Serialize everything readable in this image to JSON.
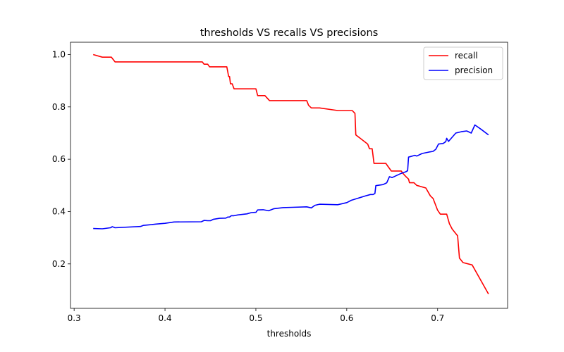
{
  "chart_data": {
    "type": "line",
    "title": "thresholds VS recalls VS precisions",
    "xlabel": "thresholds",
    "ylabel": "",
    "xlim": [
      0.296,
      0.777
    ],
    "ylim": [
      0.03,
      1.047
    ],
    "xticks": [
      0.3,
      0.4,
      0.5,
      0.6,
      0.7
    ],
    "xtick_labels": [
      "0.3",
      "0.4",
      "0.5",
      "0.6",
      "0.7"
    ],
    "yticks": [
      0.2,
      0.4,
      0.6,
      0.8,
      1.0
    ],
    "ytick_labels": [
      "0.2",
      "0.4",
      "0.6",
      "0.8",
      "1.0"
    ],
    "grid": false,
    "legend_position": "top-right",
    "series": [
      {
        "name": "recall",
        "color": "#ff0000",
        "points": [
          [
            0.321,
            1.0
          ],
          [
            0.331,
            0.99
          ],
          [
            0.341,
            0.99
          ],
          [
            0.345,
            0.972
          ],
          [
            0.441,
            0.972
          ],
          [
            0.443,
            0.963
          ],
          [
            0.447,
            0.963
          ],
          [
            0.449,
            0.953
          ],
          [
            0.468,
            0.953
          ],
          [
            0.469,
            0.935
          ],
          [
            0.47,
            0.916
          ],
          [
            0.471,
            0.916
          ],
          [
            0.472,
            0.888
          ],
          [
            0.474,
            0.888
          ],
          [
            0.476,
            0.869
          ],
          [
            0.5,
            0.869
          ],
          [
            0.502,
            0.843
          ],
          [
            0.51,
            0.843
          ],
          [
            0.515,
            0.824
          ],
          [
            0.556,
            0.824
          ],
          [
            0.558,
            0.806
          ],
          [
            0.561,
            0.796
          ],
          [
            0.57,
            0.796
          ],
          [
            0.59,
            0.786
          ],
          [
            0.606,
            0.786
          ],
          [
            0.609,
            0.775
          ],
          [
            0.61,
            0.693
          ],
          [
            0.623,
            0.658
          ],
          [
            0.625,
            0.64
          ],
          [
            0.628,
            0.64
          ],
          [
            0.63,
            0.584
          ],
          [
            0.643,
            0.584
          ],
          [
            0.649,
            0.555
          ],
          [
            0.66,
            0.555
          ],
          [
            0.662,
            0.545
          ],
          [
            0.665,
            0.534
          ],
          [
            0.668,
            0.524
          ],
          [
            0.669,
            0.51
          ],
          [
            0.674,
            0.51
          ],
          [
            0.677,
            0.5
          ],
          [
            0.687,
            0.49
          ],
          [
            0.692,
            0.46
          ],
          [
            0.695,
            0.45
          ],
          [
            0.7,
            0.405
          ],
          [
            0.703,
            0.39
          ],
          [
            0.71,
            0.39
          ],
          [
            0.713,
            0.353
          ],
          [
            0.716,
            0.333
          ],
          [
            0.722,
            0.307
          ],
          [
            0.724,
            0.222
          ],
          [
            0.728,
            0.205
          ],
          [
            0.738,
            0.196
          ],
          [
            0.756,
            0.085
          ]
        ]
      },
      {
        "name": "precision",
        "color": "#0000ff",
        "points": [
          [
            0.321,
            0.335
          ],
          [
            0.331,
            0.334
          ],
          [
            0.34,
            0.338
          ],
          [
            0.342,
            0.342
          ],
          [
            0.345,
            0.338
          ],
          [
            0.373,
            0.343
          ],
          [
            0.376,
            0.347
          ],
          [
            0.385,
            0.35
          ],
          [
            0.39,
            0.352
          ],
          [
            0.4,
            0.355
          ],
          [
            0.41,
            0.36
          ],
          [
            0.44,
            0.361
          ],
          [
            0.443,
            0.366
          ],
          [
            0.447,
            0.365
          ],
          [
            0.45,
            0.365
          ],
          [
            0.453,
            0.37
          ],
          [
            0.46,
            0.374
          ],
          [
            0.467,
            0.375
          ],
          [
            0.469,
            0.379
          ],
          [
            0.471,
            0.379
          ],
          [
            0.473,
            0.384
          ],
          [
            0.476,
            0.384
          ],
          [
            0.48,
            0.387
          ],
          [
            0.485,
            0.389
          ],
          [
            0.49,
            0.391
          ],
          [
            0.495,
            0.396
          ],
          [
            0.5,
            0.397
          ],
          [
            0.502,
            0.406
          ],
          [
            0.508,
            0.407
          ],
          [
            0.514,
            0.403
          ],
          [
            0.52,
            0.411
          ],
          [
            0.53,
            0.415
          ],
          [
            0.54,
            0.416
          ],
          [
            0.556,
            0.418
          ],
          [
            0.561,
            0.414
          ],
          [
            0.565,
            0.424
          ],
          [
            0.57,
            0.428
          ],
          [
            0.59,
            0.426
          ],
          [
            0.6,
            0.434
          ],
          [
            0.605,
            0.443
          ],
          [
            0.62,
            0.459
          ],
          [
            0.626,
            0.465
          ],
          [
            0.629,
            0.465
          ],
          [
            0.631,
            0.469
          ],
          [
            0.632,
            0.499
          ],
          [
            0.64,
            0.503
          ],
          [
            0.644,
            0.51
          ],
          [
            0.647,
            0.533
          ],
          [
            0.65,
            0.53
          ],
          [
            0.655,
            0.538
          ],
          [
            0.66,
            0.546
          ],
          [
            0.665,
            0.552
          ],
          [
            0.667,
            0.556
          ],
          [
            0.668,
            0.608
          ],
          [
            0.675,
            0.615
          ],
          [
            0.677,
            0.612
          ],
          [
            0.683,
            0.622
          ],
          [
            0.69,
            0.627
          ],
          [
            0.695,
            0.63
          ],
          [
            0.698,
            0.638
          ],
          [
            0.701,
            0.658
          ],
          [
            0.706,
            0.66
          ],
          [
            0.709,
            0.667
          ],
          [
            0.71,
            0.68
          ],
          [
            0.712,
            0.668
          ],
          [
            0.72,
            0.7
          ],
          [
            0.726,
            0.705
          ],
          [
            0.732,
            0.708
          ],
          [
            0.737,
            0.7
          ],
          [
            0.741,
            0.731
          ],
          [
            0.748,
            0.714
          ],
          [
            0.756,
            0.693
          ]
        ]
      }
    ]
  }
}
